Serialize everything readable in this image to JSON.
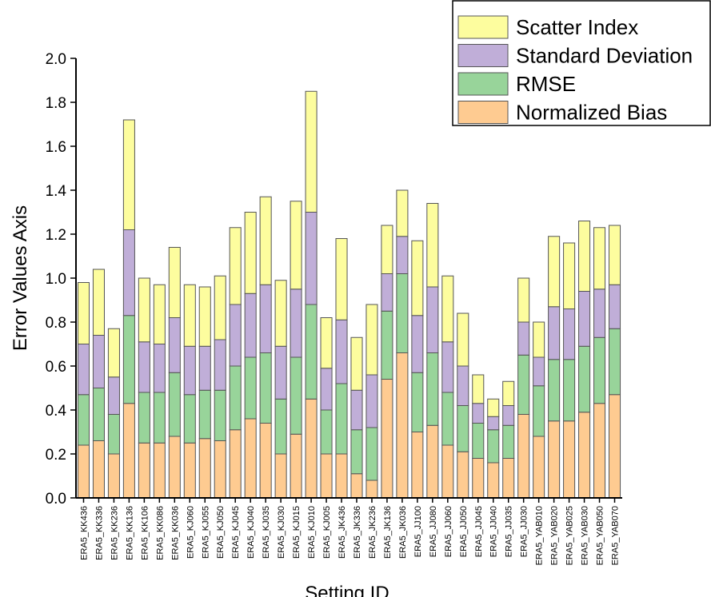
{
  "chart_data": {
    "type": "stacked_bar",
    "xlabel": "Setting ID",
    "ylabel": "Error Values Axis",
    "categories": [
      "ERA5_KK436",
      "ERA5_KK336",
      "ERA5_KK236",
      "ERA5_KK136",
      "ERA5_KK106",
      "ERA5_KK086",
      "ERA5_KK036",
      "ERA5_KJ060",
      "ERA5_KJ055",
      "ERA5_KJ050",
      "ERA5_KJ045",
      "ERA5_KJ040",
      "ERA5_KJ035",
      "ERA5_KJ030",
      "ERA5_KJ015",
      "ERA5_KJ010",
      "ERA5_KJ005",
      "ERA5_JK436",
      "ERA5_JK336",
      "ERA5_JK236",
      "ERA5_JK136",
      "ERA5_JK036",
      "ERA5_JJ100",
      "ERA5_JJ080",
      "ERA5_JJ060",
      "ERA5_JJ050",
      "ERA5_JJ045",
      "ERA5_JJ040",
      "ERA5_JJ035",
      "ERA5_JJ030",
      "ERA5_YAB010",
      "ERA5_YAB020",
      "ERA5_YAB025",
      "ERA5_YAB030",
      "ERA5_YAB050",
      "ERA5_YAB070"
    ],
    "series": [
      {
        "name": "Normalized Bias",
        "color": "#fecb91",
        "values": [
          0.24,
          0.26,
          0.2,
          0.43,
          0.25,
          0.25,
          0.28,
          0.25,
          0.27,
          0.26,
          0.31,
          0.36,
          0.34,
          0.2,
          0.29,
          0.45,
          0.2,
          0.2,
          0.11,
          0.08,
          0.54,
          0.66,
          0.3,
          0.33,
          0.24,
          0.21,
          0.18,
          0.16,
          0.18,
          0.38,
          0.28,
          0.35,
          0.35,
          0.39,
          0.43,
          0.47
        ]
      },
      {
        "name": "RMSE",
        "color": "#98d49a",
        "values": [
          0.23,
          0.24,
          0.18,
          0.4,
          0.23,
          0.23,
          0.29,
          0.22,
          0.22,
          0.23,
          0.29,
          0.28,
          0.32,
          0.25,
          0.35,
          0.43,
          0.2,
          0.32,
          0.2,
          0.24,
          0.31,
          0.36,
          0.27,
          0.33,
          0.24,
          0.21,
          0.16,
          0.15,
          0.15,
          0.27,
          0.23,
          0.28,
          0.28,
          0.3,
          0.3,
          0.3
        ]
      },
      {
        "name": "Standard Deviation",
        "color": "#c0aed8",
        "values": [
          0.23,
          0.24,
          0.17,
          0.39,
          0.23,
          0.22,
          0.25,
          0.22,
          0.2,
          0.23,
          0.28,
          0.29,
          0.31,
          0.24,
          0.31,
          0.42,
          0.19,
          0.29,
          0.18,
          0.24,
          0.17,
          0.17,
          0.26,
          0.3,
          0.23,
          0.18,
          0.09,
          0.06,
          0.09,
          0.15,
          0.13,
          0.24,
          0.23,
          0.25,
          0.22,
          0.2
        ]
      },
      {
        "name": "Scatter Index",
        "color": "#fdfd9e",
        "values": [
          0.28,
          0.3,
          0.22,
          0.5,
          0.29,
          0.27,
          0.32,
          0.28,
          0.27,
          0.29,
          0.35,
          0.37,
          0.4,
          0.3,
          0.4,
          0.55,
          0.23,
          0.37,
          0.24,
          0.32,
          0.22,
          0.21,
          0.34,
          0.38,
          0.3,
          0.24,
          0.13,
          0.08,
          0.11,
          0.2,
          0.16,
          0.32,
          0.3,
          0.32,
          0.28,
          0.27
        ]
      }
    ],
    "ylim": [
      0,
      2
    ],
    "yticks": [
      {
        "value": 0,
        "label": "0.0"
      },
      0.2,
      0.4,
      0.6,
      0.8,
      {
        "value": 1,
        "label": "1.0"
      },
      1.2,
      1.4,
      1.6,
      1.8,
      {
        "value": 2,
        "label": "2.0"
      }
    ],
    "legend": "upper right"
  }
}
